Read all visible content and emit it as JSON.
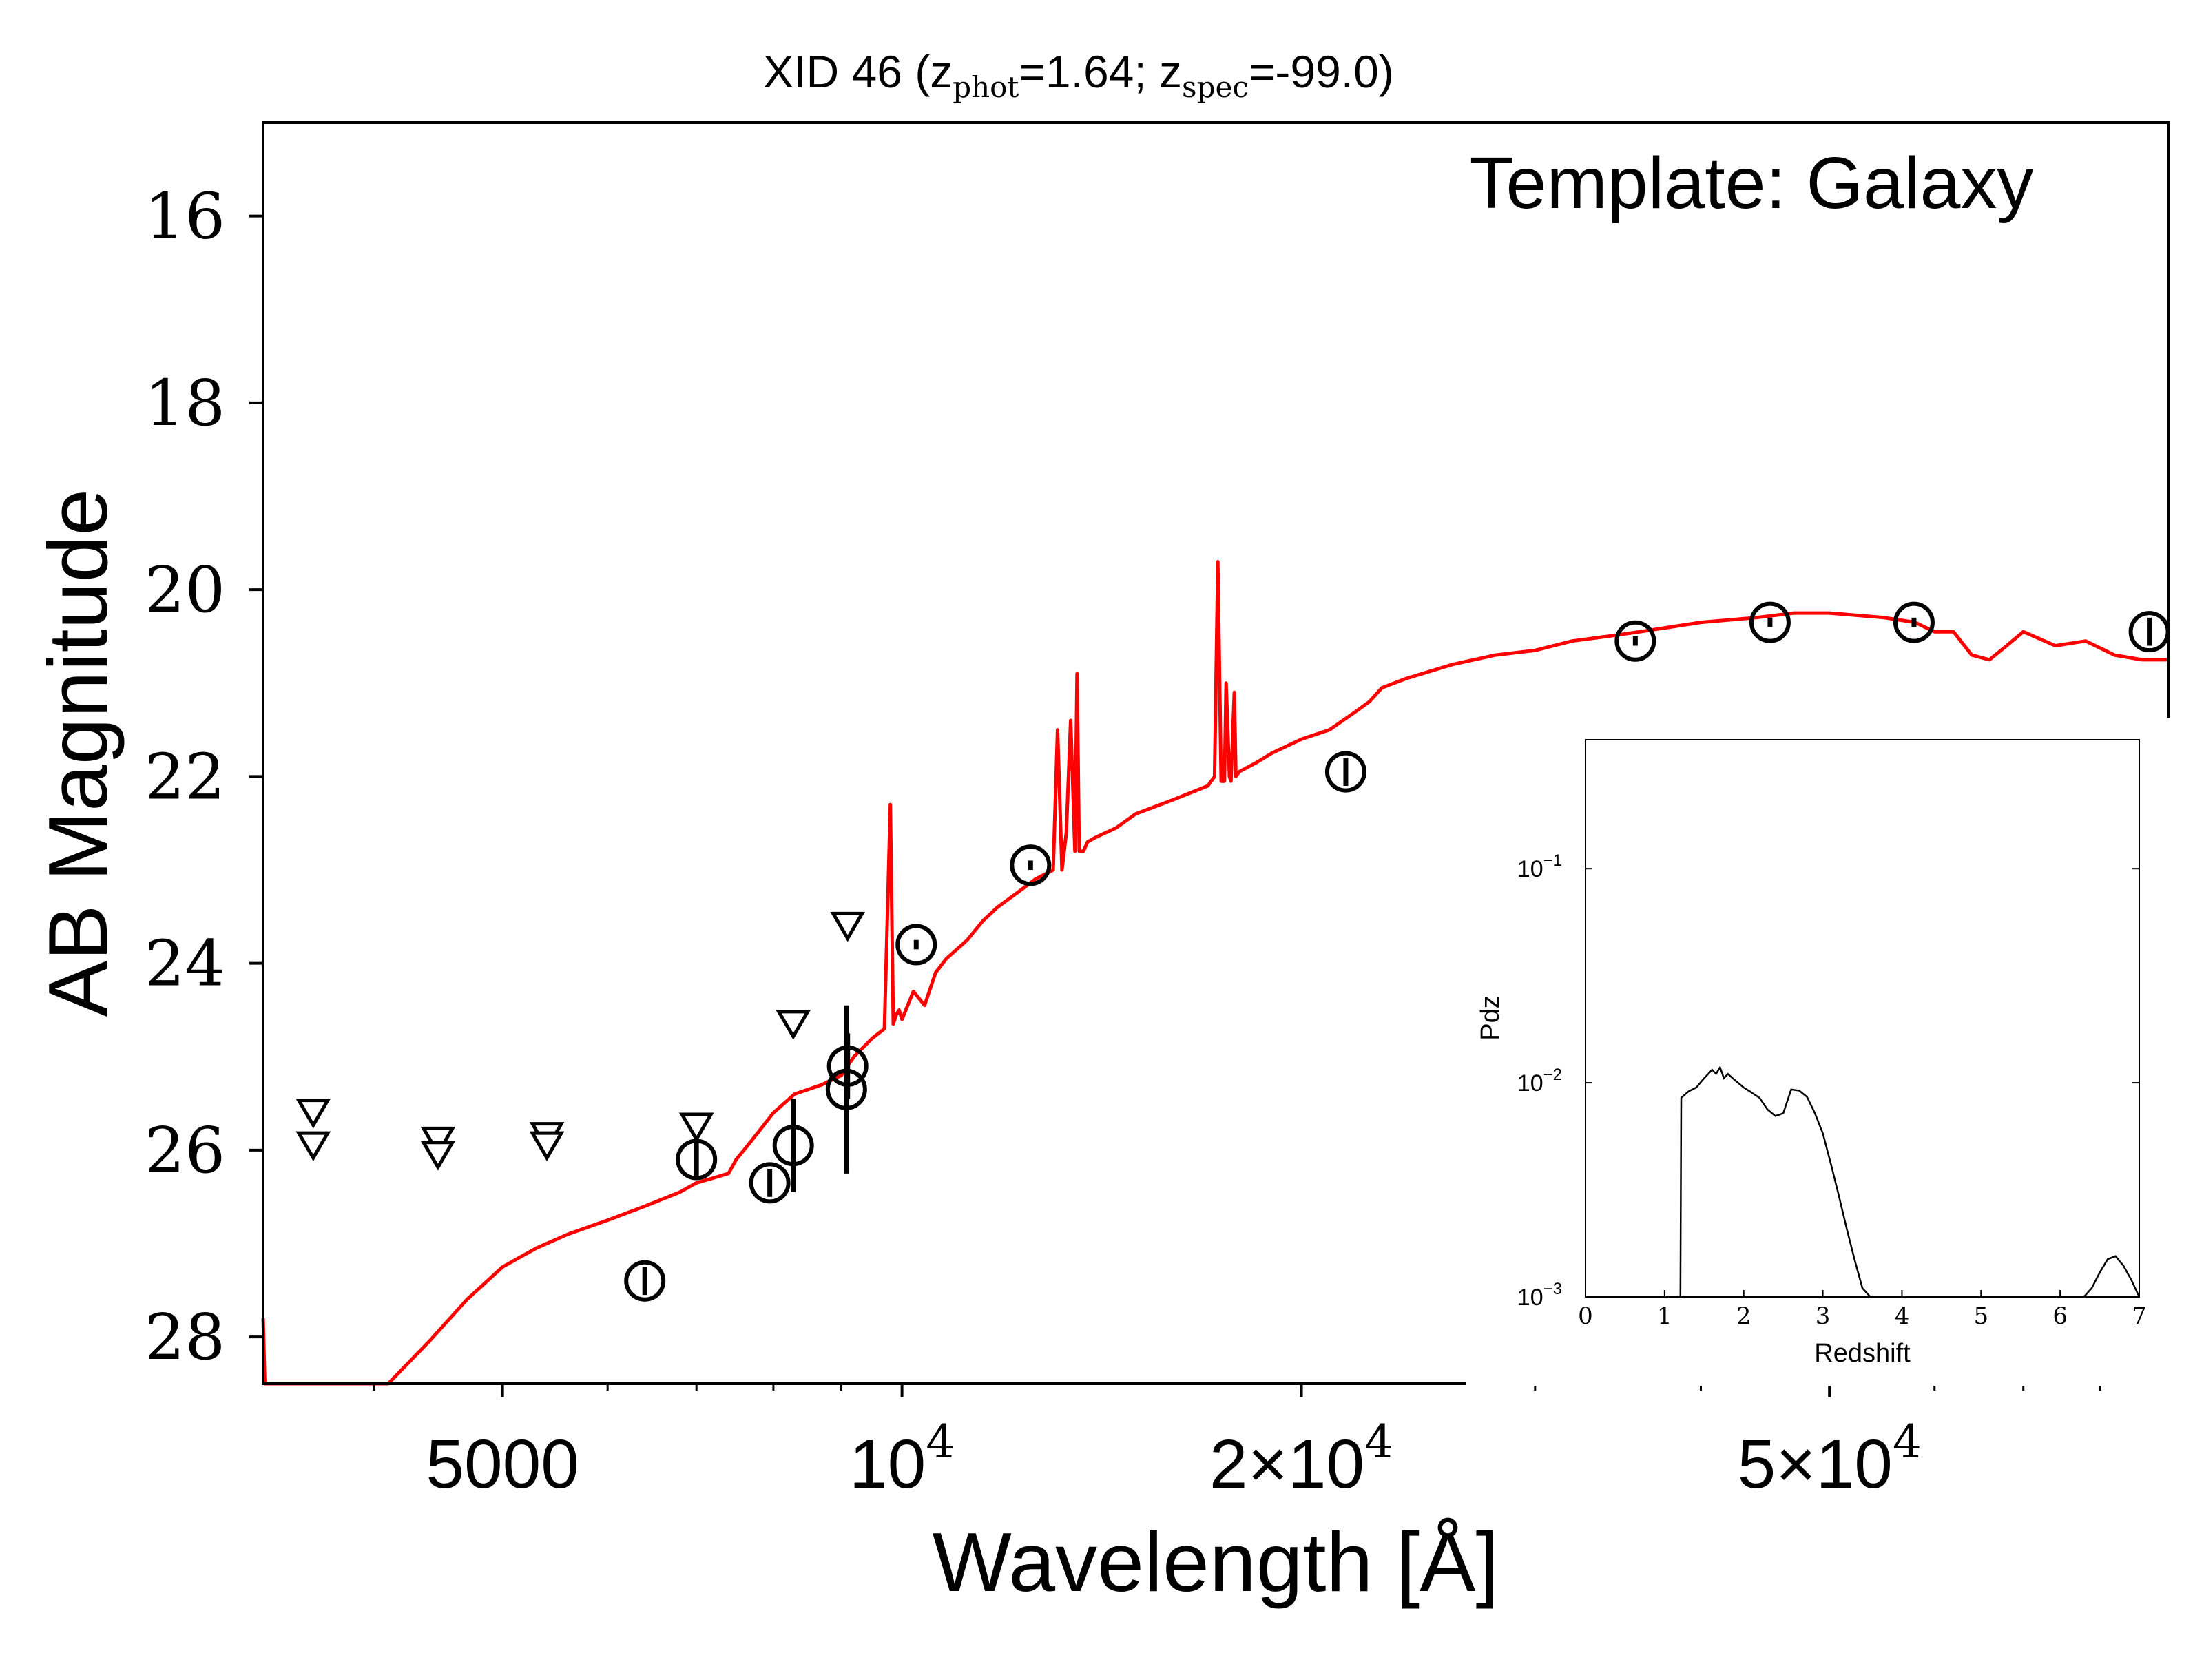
{
  "chart_data": [
    {
      "type": "line",
      "title_parts": [
        "XID 46 (z",
        "phot",
        "=1.64; z",
        "spec",
        "=-99.0)"
      ],
      "annotation": "Template: Galaxy",
      "xlabel": "Wavelength [Å]",
      "ylabel": "AB Magnitude",
      "x_scale": "log",
      "xlim": [
        3300,
        90000
      ],
      "ylim": [
        28.5,
        15
      ],
      "x_ticks": [
        {
          "value": 5000,
          "base": "5000",
          "exp": ""
        },
        {
          "value": 10000,
          "base": "10",
          "exp": "4"
        },
        {
          "value": 20000,
          "base": "2×10",
          "exp": "4"
        },
        {
          "value": 50000,
          "base": "5×10",
          "exp": "4"
        }
      ],
      "y_ticks": [
        "16",
        "18",
        "20",
        "22",
        "24",
        "26",
        "28"
      ],
      "series": [
        {
          "color": "#ff0000",
          "x": [
            3300,
            3310,
            4100,
            4400,
            4700,
            5000,
            5300,
            5600,
            6000,
            6400,
            6800,
            7000,
            7200,
            7400,
            7500,
            7600,
            7700,
            7800,
            8000,
            8300,
            8700,
            9000,
            9200,
            9500,
            9700,
            9800,
            9850,
            9900,
            9950,
            10000,
            10200,
            10400,
            10600,
            10800,
            11000,
            11200,
            11500,
            11800,
            12200,
            12600,
            13000,
            13100,
            13200,
            13300,
            13400,
            13500,
            13550,
            13600,
            13700,
            13800,
            14000,
            14500,
            15000,
            16000,
            17000,
            17200,
            17300,
            17400,
            17500,
            17550,
            17650,
            17700,
            17800,
            17850,
            17950,
            18500,
            19000,
            20000,
            21000,
            22000,
            22500,
            23000,
            24000,
            26000,
            28000,
            30000,
            32000,
            34000,
            36000,
            40000,
            44000,
            47000,
            50000,
            55000,
            58000,
            60000,
            62000,
            64000,
            66000,
            68000,
            70000,
            74000,
            78000,
            82000,
            86000,
            90000
          ],
          "y": [
            27.8,
            28.5,
            28.5,
            28.05,
            27.6,
            27.25,
            27.05,
            26.9,
            26.75,
            26.6,
            26.45,
            26.35,
            26.3,
            26.25,
            26.1,
            26.0,
            25.9,
            25.8,
            25.6,
            25.4,
            25.3,
            25.2,
            25.0,
            24.8,
            24.7,
            22.3,
            24.65,
            24.55,
            24.5,
            24.6,
            24.3,
            24.45,
            24.1,
            23.95,
            23.85,
            23.75,
            23.55,
            23.4,
            23.25,
            23.1,
            23.0,
            21.5,
            23.0,
            22.6,
            21.4,
            22.8,
            20.9,
            22.8,
            22.8,
            22.7,
            22.65,
            22.55,
            22.4,
            22.25,
            22.1,
            22.0,
            19.7,
            22.05,
            22.05,
            21.0,
            22.0,
            22.05,
            21.1,
            22.0,
            21.95,
            21.85,
            21.75,
            21.6,
            21.5,
            21.3,
            21.2,
            21.05,
            20.95,
            20.8,
            20.7,
            20.65,
            20.55,
            20.5,
            20.45,
            20.35,
            20.3,
            20.25,
            20.25,
            20.3,
            20.35,
            20.45,
            20.45,
            20.7,
            20.75,
            20.6,
            20.45,
            20.6,
            20.55,
            20.7,
            20.75,
            20.75
          ]
        }
      ],
      "points": [
        {
          "x": 6400,
          "y": 27.4,
          "err": 0.15
        },
        {
          "x": 7000,
          "y": 26.1,
          "err": 0.2
        },
        {
          "x": 7950,
          "y": 26.35,
          "err": 0.15
        },
        {
          "x": 8280,
          "y": 25.95,
          "err": 0.5
        },
        {
          "x": 9100,
          "y": 25.1,
          "err": 0.35
        },
        {
          "x": 9080,
          "y": 25.35,
          "err": 0.9
        },
        {
          "x": 10250,
          "y": 23.8,
          "err": 0.05
        },
        {
          "x": 12500,
          "y": 22.95,
          "err": 0.05
        },
        {
          "x": 21600,
          "y": 21.95,
          "err": 0.15
        },
        {
          "x": 35700,
          "y": 20.55,
          "err": 0.05
        },
        {
          "x": 45100,
          "y": 20.35,
          "err": 0.05
        },
        {
          "x": 57900,
          "y": 20.35,
          "err": 0.05
        },
        {
          "x": 87100,
          "y": 20.45,
          "err": 0.15
        }
      ],
      "upper_limits": [
        {
          "x": 3600,
          "y": 25.6
        },
        {
          "x": 3600,
          "y": 25.95
        },
        {
          "x": 4470,
          "y": 25.9
        },
        {
          "x": 4470,
          "y": 26.05
        },
        {
          "x": 5400,
          "y": 25.85
        },
        {
          "x": 5400,
          "y": 25.95
        },
        {
          "x": 7000,
          "y": 25.75
        },
        {
          "x": 8280,
          "y": 24.65
        },
        {
          "x": 9100,
          "y": 23.6
        }
      ]
    },
    {
      "type": "line",
      "xlabel": "Redshift",
      "ylabel": "Pdz",
      "y_scale": "log",
      "xlim": [
        0,
        7
      ],
      "ylim": [
        0.001,
        0.4
      ],
      "x_ticks": [
        "0",
        "1",
        "2",
        "3",
        "4",
        "5",
        "6",
        "7"
      ],
      "y_ticks": [
        {
          "value": 0.1,
          "base": "10",
          "exp": "−1"
        },
        {
          "value": 0.01,
          "base": "10",
          "exp": "−2"
        },
        {
          "value": 0.001,
          "base": "10",
          "exp": "−3"
        }
      ],
      "series": [
        {
          "color": "#000000",
          "x": [
            1.2,
            1.21,
            1.3,
            1.4,
            1.5,
            1.6,
            1.65,
            1.7,
            1.75,
            1.8,
            1.9,
            2.0,
            2.1,
            2.2,
            2.3,
            2.4,
            2.5,
            2.6,
            2.7,
            2.8,
            2.9,
            3.0,
            3.1,
            3.2,
            3.3,
            3.4,
            3.5,
            3.6
          ],
          "y": [
            0.001,
            0.0085,
            0.0091,
            0.0095,
            0.0105,
            0.0115,
            0.011,
            0.0118,
            0.0105,
            0.011,
            0.0102,
            0.0095,
            0.009,
            0.0085,
            0.0075,
            0.007,
            0.0072,
            0.0093,
            0.0092,
            0.0086,
            0.0072,
            0.0058,
            0.0042,
            0.003,
            0.0021,
            0.0015,
            0.0011,
            0.001
          ]
        },
        {
          "color": "#000000",
          "x": [
            6.3,
            6.4,
            6.5,
            6.6,
            6.7,
            6.8,
            6.9,
            7.0
          ],
          "y": [
            0.001,
            0.0011,
            0.0013,
            0.0015,
            0.00155,
            0.0014,
            0.0012,
            0.001
          ]
        }
      ]
    }
  ]
}
